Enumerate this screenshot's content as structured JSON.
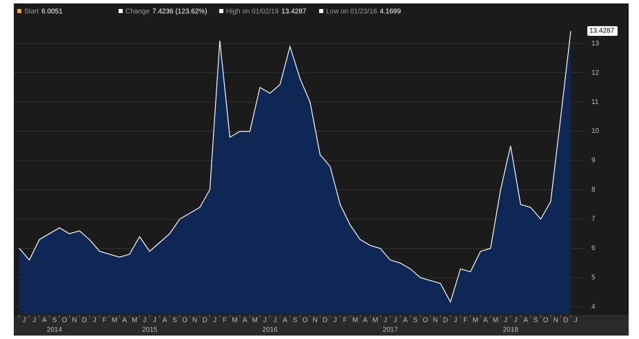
{
  "header": [
    {
      "label": "Start",
      "value": 6.0051,
      "color": "#f0a030"
    },
    {
      "label": "Change",
      "value": "7.4236 (123.62%)",
      "color": "#ffffff"
    },
    {
      "label": "High on 01/02/19",
      "value": 13.4287,
      "color": "#ffffff"
    },
    {
      "label": "Low on 01/23/18",
      "value": 4.1699,
      "color": "#ffffff"
    }
  ],
  "chart_data": {
    "type": "area",
    "color": "#0e2754",
    "line_color": "#ffffff",
    "x": [
      "2014-06",
      "2014-07",
      "2014-08",
      "2014-09",
      "2014-10",
      "2014-11",
      "2014-12",
      "2015-01",
      "2015-02",
      "2015-03",
      "2015-04",
      "2015-05",
      "2015-06",
      "2015-07",
      "2015-08",
      "2015-09",
      "2015-10",
      "2015-11",
      "2015-12",
      "2016-01",
      "2016-02",
      "2016-03",
      "2016-04",
      "2016-05",
      "2016-06",
      "2016-07",
      "2016-08",
      "2016-09",
      "2016-10",
      "2016-11",
      "2016-12",
      "2017-01",
      "2017-02",
      "2017-03",
      "2017-04",
      "2017-05",
      "2017-06",
      "2017-07",
      "2017-08",
      "2017-09",
      "2017-10",
      "2017-11",
      "2017-12",
      "2018-01",
      "2018-02",
      "2018-03",
      "2018-04",
      "2018-05",
      "2018-06",
      "2018-07",
      "2018-08",
      "2018-09",
      "2018-10",
      "2018-11",
      "2018-12",
      "2019-01"
    ],
    "values": [
      6.0051,
      5.6,
      6.3,
      6.5,
      6.7,
      6.5,
      6.6,
      6.3,
      5.9,
      5.8,
      5.7,
      5.8,
      6.4,
      5.9,
      6.2,
      6.5,
      7.0,
      7.2,
      7.4,
      8.0,
      13.1,
      9.8,
      10.0,
      10.0,
      11.5,
      11.3,
      11.6,
      12.9,
      11.8,
      11.0,
      9.2,
      8.8,
      7.5,
      6.8,
      6.3,
      6.1,
      6.0,
      5.6,
      5.5,
      5.3,
      5.0,
      4.9,
      4.8,
      4.1699,
      5.3,
      5.2,
      5.9,
      6.0,
      8.0,
      9.5,
      7.5,
      7.4,
      7.0,
      7.6,
      10.5,
      13.4287
    ],
    "xlim": [
      "2014-06",
      "2019-01"
    ],
    "xticks": [
      {
        "value": "2014-06",
        "label": "J"
      },
      {
        "value": "2014-07",
        "label": "J"
      },
      {
        "value": "2014-08",
        "label": "A"
      },
      {
        "value": "2014-09",
        "label": "S"
      },
      {
        "value": "2014-10",
        "label": "O"
      },
      {
        "value": "2014-11",
        "label": "N"
      },
      {
        "value": "2014-12",
        "label": "D"
      },
      {
        "value": "2015-01",
        "label": "J"
      },
      {
        "value": "2015-02",
        "label": "F"
      },
      {
        "value": "2015-03",
        "label": "M"
      },
      {
        "value": "2015-04",
        "label": "A"
      },
      {
        "value": "2015-05",
        "label": "M"
      },
      {
        "value": "2015-06",
        "label": "J"
      },
      {
        "value": "2015-07",
        "label": "J"
      },
      {
        "value": "2015-08",
        "label": "A"
      },
      {
        "value": "2015-09",
        "label": "S"
      },
      {
        "value": "2015-10",
        "label": "O"
      },
      {
        "value": "2015-11",
        "label": "N"
      },
      {
        "value": "2015-12",
        "label": "D"
      },
      {
        "value": "2016-01",
        "label": "J"
      },
      {
        "value": "2016-02",
        "label": "F"
      },
      {
        "value": "2016-03",
        "label": "M"
      },
      {
        "value": "2016-04",
        "label": "A"
      },
      {
        "value": "2016-05",
        "label": "M"
      },
      {
        "value": "2016-06",
        "label": "J"
      },
      {
        "value": "2016-07",
        "label": "J"
      },
      {
        "value": "2016-08",
        "label": "A"
      },
      {
        "value": "2016-09",
        "label": "S"
      },
      {
        "value": "2016-10",
        "label": "O"
      },
      {
        "value": "2016-11",
        "label": "N"
      },
      {
        "value": "2016-12",
        "label": "D"
      },
      {
        "value": "2017-01",
        "label": "J"
      },
      {
        "value": "2017-02",
        "label": "F"
      },
      {
        "value": "2017-03",
        "label": "M"
      },
      {
        "value": "2017-04",
        "label": "A"
      },
      {
        "value": "2017-05",
        "label": "M"
      },
      {
        "value": "2017-06",
        "label": "J"
      },
      {
        "value": "2017-07",
        "label": "J"
      },
      {
        "value": "2017-08",
        "label": "A"
      },
      {
        "value": "2017-09",
        "label": "S"
      },
      {
        "value": "2017-10",
        "label": "O"
      },
      {
        "value": "2017-11",
        "label": "N"
      },
      {
        "value": "2017-12",
        "label": "D"
      },
      {
        "value": "2018-01",
        "label": "J"
      },
      {
        "value": "2018-02",
        "label": "F"
      },
      {
        "value": "2018-03",
        "label": "M"
      },
      {
        "value": "2018-04",
        "label": "A"
      },
      {
        "value": "2018-05",
        "label": "M"
      },
      {
        "value": "2018-06",
        "label": "J"
      },
      {
        "value": "2018-07",
        "label": "J"
      },
      {
        "value": "2018-08",
        "label": "A"
      },
      {
        "value": "2018-09",
        "label": "S"
      },
      {
        "value": "2018-10",
        "label": "O"
      },
      {
        "value": "2018-11",
        "label": "N"
      },
      {
        "value": "2018-12",
        "label": "D"
      },
      {
        "value": "2019-01",
        "label": "J"
      }
    ],
    "years": [
      "2014",
      "2015",
      "2016",
      "2017",
      "2018"
    ],
    "ylim": [
      3.75,
      14.3
    ],
    "yticks": [
      4,
      5,
      6,
      7,
      8,
      9,
      10,
      11,
      12,
      13
    ],
    "grid": true
  }
}
